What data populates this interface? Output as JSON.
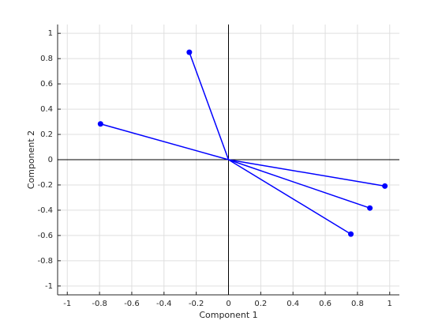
{
  "chart_data": {
    "type": "biplot",
    "x_label": "Component 1",
    "y_label": "Component 2",
    "x": [
      -0.794,
      -0.243,
      0.97,
      0.877,
      0.759
    ],
    "y": [
      0.283,
      0.85,
      -0.209,
      -0.383,
      -0.589
    ],
    "color": "#0000ff",
    "xlim": [
      -1.06,
      1.06
    ],
    "ylim": [
      -1.07,
      1.07
    ],
    "xticks": [
      -1,
      -0.8,
      -0.6,
      -0.4,
      -0.2,
      0,
      0.2,
      0.4,
      0.6,
      0.8,
      1
    ],
    "yticks": [
      -1,
      -0.8,
      -0.6,
      -0.4,
      -0.2,
      0,
      0.2,
      0.4,
      0.6,
      0.8,
      1
    ],
    "grid": true
  }
}
